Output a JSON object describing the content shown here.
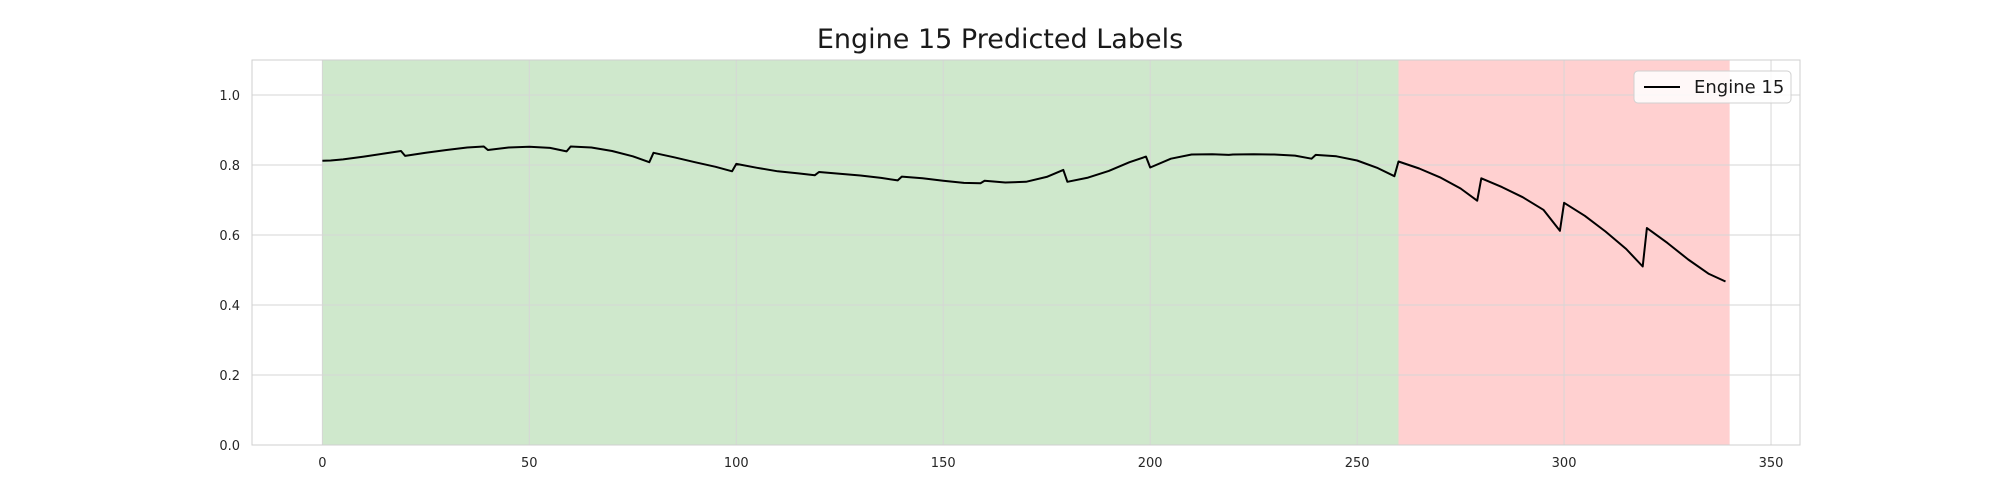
{
  "chart_data": {
    "type": "line",
    "title": "Engine 15 Predicted Labels",
    "xlabel": "",
    "ylabel": "",
    "xlim": [
      -17,
      357
    ],
    "ylim": [
      0.0,
      1.1
    ],
    "x_ticks": [
      0,
      50,
      100,
      150,
      200,
      250,
      300,
      350
    ],
    "y_ticks": [
      0.0,
      0.2,
      0.4,
      0.6,
      0.8,
      1.0
    ],
    "grid": true,
    "legend_placement": "top-right",
    "background_bands": [
      {
        "x_start": 0,
        "x_end": 260,
        "color": "#cfe8cc"
      },
      {
        "x_start": 260,
        "x_end": 340,
        "color": "#ffd0d0"
      }
    ],
    "series": [
      {
        "name": "Engine 15",
        "color": "#000000",
        "x": [
          0,
          2,
          5,
          10,
          15,
          19,
          20,
          25,
          30,
          35,
          39,
          40,
          45,
          50,
          55,
          59,
          60,
          65,
          70,
          75,
          79,
          80,
          85,
          90,
          95,
          99,
          100,
          105,
          110,
          115,
          119,
          120,
          125,
          130,
          135,
          139,
          140,
          145,
          150,
          155,
          159,
          160,
          165,
          170,
          175,
          179,
          180,
          185,
          190,
          195,
          199,
          200,
          205,
          210,
          215,
          219,
          220,
          225,
          230,
          235,
          239,
          240,
          245,
          250,
          255,
          259,
          260,
          265,
          270,
          275,
          279,
          280,
          285,
          290,
          295,
          299,
          300,
          305,
          310,
          315,
          319,
          320,
          325,
          330,
          335,
          339
        ],
        "y": [
          0.812,
          0.813,
          0.816,
          0.824,
          0.833,
          0.84,
          0.826,
          0.835,
          0.843,
          0.85,
          0.853,
          0.843,
          0.85,
          0.852,
          0.849,
          0.839,
          0.853,
          0.85,
          0.84,
          0.825,
          0.808,
          0.835,
          0.822,
          0.808,
          0.795,
          0.782,
          0.803,
          0.792,
          0.782,
          0.776,
          0.771,
          0.78,
          0.775,
          0.77,
          0.763,
          0.756,
          0.767,
          0.762,
          0.755,
          0.749,
          0.748,
          0.755,
          0.75,
          0.752,
          0.766,
          0.786,
          0.752,
          0.764,
          0.783,
          0.808,
          0.824,
          0.793,
          0.818,
          0.83,
          0.831,
          0.829,
          0.83,
          0.831,
          0.83,
          0.827,
          0.818,
          0.829,
          0.825,
          0.813,
          0.791,
          0.768,
          0.81,
          0.79,
          0.765,
          0.733,
          0.698,
          0.762,
          0.737,
          0.708,
          0.672,
          0.612,
          0.692,
          0.655,
          0.61,
          0.56,
          0.51,
          0.62,
          0.577,
          0.53,
          0.489,
          0.467
        ]
      }
    ]
  }
}
